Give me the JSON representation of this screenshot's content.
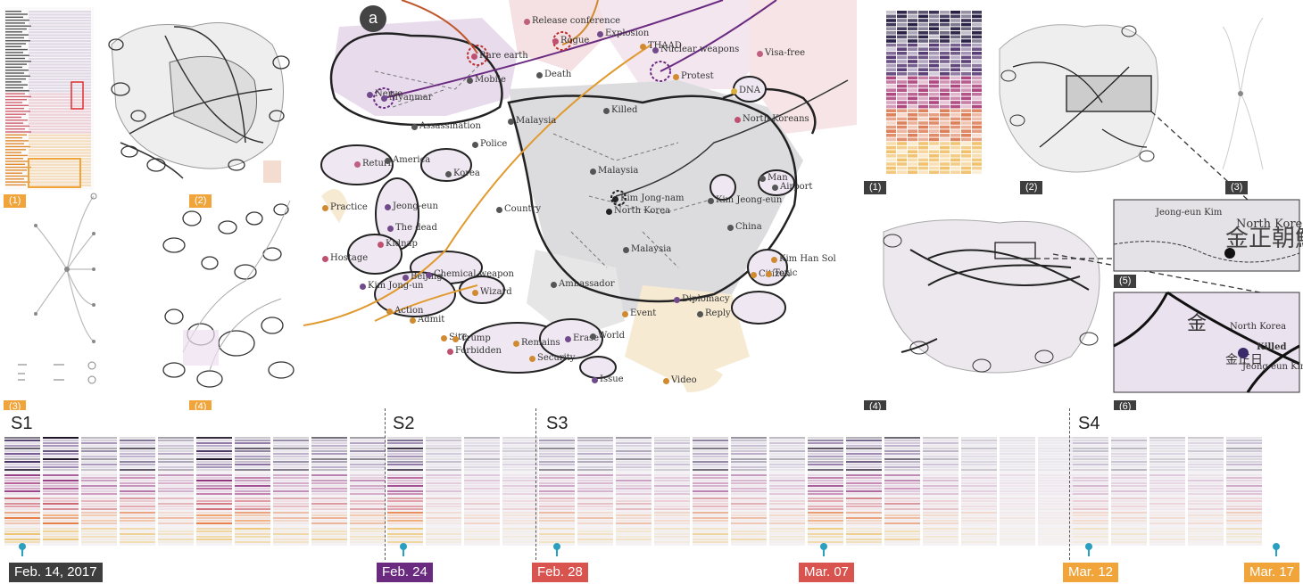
{
  "main_panel": {
    "badge": "a"
  },
  "left_panel": {
    "labels": [
      "(1)",
      "(2)",
      "(3)",
      "(4)"
    ]
  },
  "right_panel": {
    "labels": [
      "(1)",
      "(2)",
      "(3)",
      "(4)",
      "(5)",
      "(6)"
    ],
    "zoom6_annotations": {
      "north_korea": "North Korea",
      "killed": "Killed",
      "jeong": "Jeong-eun Kim"
    },
    "zoom5_annotations": {
      "jeong": "Jeong-eun Kim",
      "north_korea": "North Korea"
    }
  },
  "map_labels": [
    {
      "text": "Release conference",
      "color": "#c06080"
    },
    {
      "text": "Rare earth",
      "color": "#c05070"
    },
    {
      "text": "Rogue",
      "color": "#c05070"
    },
    {
      "text": "Explosion",
      "color": "#704a8a"
    },
    {
      "text": "THAAD",
      "color": "#d08a30"
    },
    {
      "text": "Nuclear weapons",
      "color": "#704a8a"
    },
    {
      "text": "Visa-free",
      "color": "#c06080"
    },
    {
      "text": "Protest",
      "color": "#d08a30"
    },
    {
      "text": "Nerve",
      "color": "#704a8a"
    },
    {
      "text": "Myanmar",
      "color": "#704a8a"
    },
    {
      "text": "Mobile",
      "color": "#555"
    },
    {
      "text": "Death",
      "color": "#555"
    },
    {
      "text": "DNA",
      "color": "#d9b040"
    },
    {
      "text": "Malaysia",
      "color": "#555"
    },
    {
      "text": "Killed",
      "color": "#555"
    },
    {
      "text": "North Koreans",
      "color": "#c05070"
    },
    {
      "text": "Assassination",
      "color": "#555"
    },
    {
      "text": "Police",
      "color": "#555"
    },
    {
      "text": "Return",
      "color": "#c06080"
    },
    {
      "text": "America",
      "color": "#555"
    },
    {
      "text": "Korea",
      "color": "#555"
    },
    {
      "text": "Malaysia",
      "color": "#555"
    },
    {
      "text": "Man",
      "color": "#555"
    },
    {
      "text": "Airport",
      "color": "#555"
    },
    {
      "text": "Practice",
      "color": "#d08a30"
    },
    {
      "text": "Jeong-eun",
      "color": "#704a8a"
    },
    {
      "text": "Country",
      "color": "#555"
    },
    {
      "text": "Kim Jong-nam",
      "color": "#222"
    },
    {
      "text": "North Korea",
      "color": "#222"
    },
    {
      "text": "Kim Jeong-eun",
      "color": "#555"
    },
    {
      "text": "The dead",
      "color": "#704a8a"
    },
    {
      "text": "China",
      "color": "#555"
    },
    {
      "text": "Kidnap",
      "color": "#c05070"
    },
    {
      "text": "Malaysia",
      "color": "#555"
    },
    {
      "text": "Kim Han Sol",
      "color": "#d08a30"
    },
    {
      "text": "Hostage",
      "color": "#c05070"
    },
    {
      "text": "Citizen",
      "color": "#d08a30"
    },
    {
      "text": "Toxic",
      "color": "#d08a30"
    },
    {
      "text": "Beijing",
      "color": "#704a8a"
    },
    {
      "text": "Chemical weapon",
      "color": "#704a8a"
    },
    {
      "text": "Kim Jong-un",
      "color": "#704a8a"
    },
    {
      "text": "Wizard",
      "color": "#d08a30"
    },
    {
      "text": "Ambassador",
      "color": "#555"
    },
    {
      "text": "Diplomacy",
      "color": "#704a8a"
    },
    {
      "text": "Action",
      "color": "#d08a30"
    },
    {
      "text": "Event",
      "color": "#d08a30"
    },
    {
      "text": "Reply",
      "color": "#555"
    },
    {
      "text": "Admit",
      "color": "#d08a30"
    },
    {
      "text": "Site",
      "color": "#d08a30"
    },
    {
      "text": "Trump",
      "color": "#d08a30"
    },
    {
      "text": "Forbidden",
      "color": "#c05070"
    },
    {
      "text": "Remains",
      "color": "#d08a30"
    },
    {
      "text": "Security",
      "color": "#d08a30"
    },
    {
      "text": "Erase",
      "color": "#704a8a"
    },
    {
      "text": "World",
      "color": "#555"
    },
    {
      "text": "Issue",
      "color": "#704a8a"
    },
    {
      "text": "Video",
      "color": "#d08a30"
    }
  ],
  "timeline": {
    "segments": [
      "S1",
      "S2",
      "S3",
      "S4"
    ],
    "dates": [
      {
        "text": "Feb. 14, 2017",
        "color": "#3e3e3e"
      },
      {
        "text": "Feb. 24",
        "color": "#6a2a80"
      },
      {
        "text": "Feb. 28",
        "color": "#d9534f"
      },
      {
        "text": "Mar. 07",
        "color": "#d9534f"
      },
      {
        "text": "Mar. 12",
        "color": "#f0a43a"
      },
      {
        "text": "Mar. 17",
        "color": "#f0a43a"
      }
    ],
    "column_intensity": [
      0.95,
      0.95,
      0.55,
      0.65,
      0.45,
      0.95,
      0.8,
      0.5,
      0.6,
      0.5,
      0.85,
      0.25,
      0.25,
      0.2,
      0.45,
      0.4,
      0.4,
      0.3,
      0.55,
      0.45,
      0.3,
      0.75,
      0.7,
      0.6,
      0.3,
      0.2,
      0.1,
      0.05,
      0.3,
      0.25,
      0.2,
      0.2,
      0.35,
      0.1
    ]
  }
}
